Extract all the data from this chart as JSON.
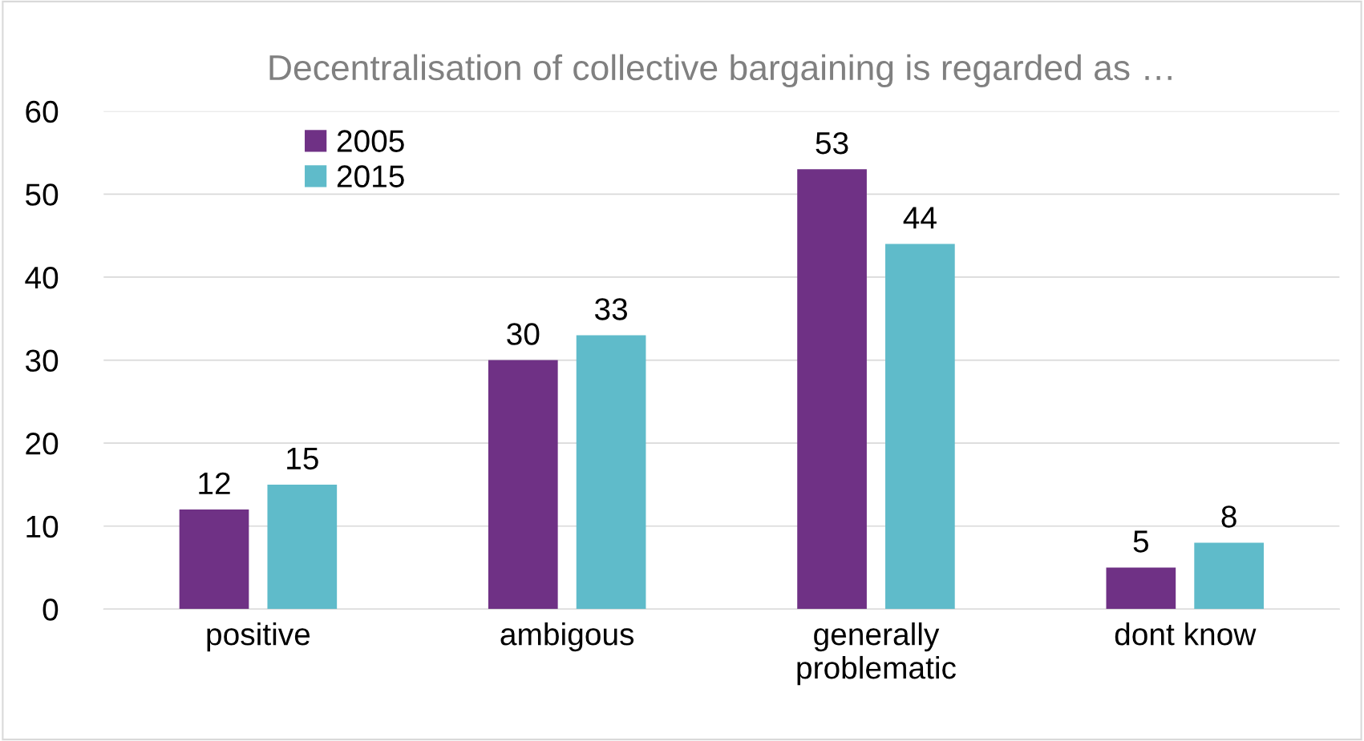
{
  "chart_data": {
    "type": "bar",
    "title": "Decentralisation of collective bargaining is regarded as …",
    "categories": [
      "positive",
      "ambigous",
      "generally\nproblematic",
      "dont know"
    ],
    "series": [
      {
        "name": "2005",
        "color": "#6f3185",
        "values": [
          12,
          30,
          53,
          5
        ]
      },
      {
        "name": "2015",
        "color": "#5fbbca",
        "values": [
          15,
          33,
          44,
          8
        ]
      }
    ],
    "ylim": [
      0,
      60
    ],
    "yticks": [
      0,
      10,
      20,
      30,
      40,
      50,
      60
    ],
    "grid": "y",
    "legend": "top left",
    "data_labels": true
  }
}
